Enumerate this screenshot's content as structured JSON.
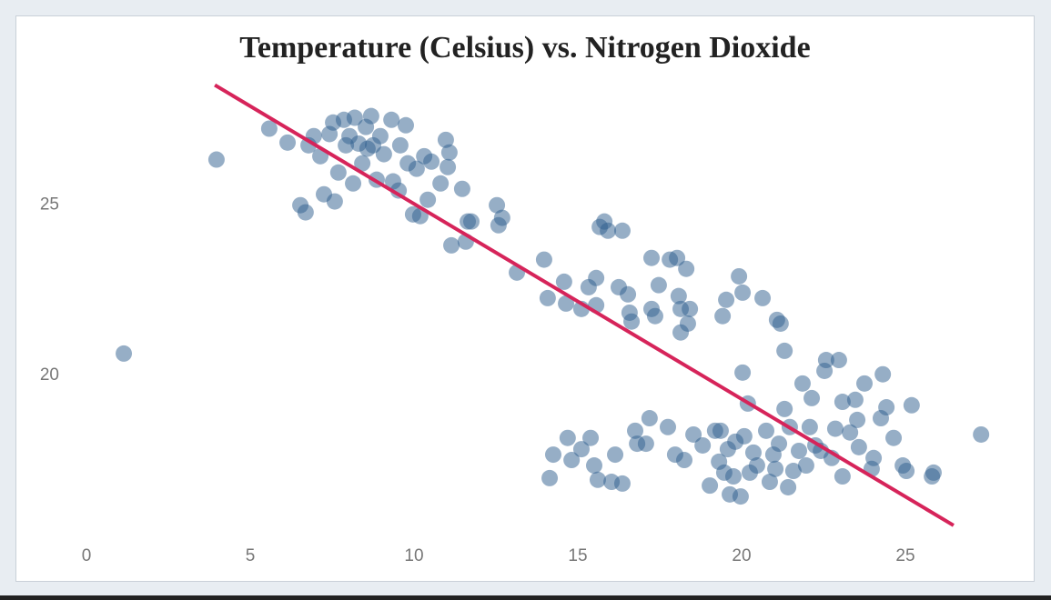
{
  "chart_data": {
    "type": "scatter",
    "title": "Temperature (Celsius) vs. Nitrogen Dioxide",
    "xlim": [
      -0.5,
      28
    ],
    "ylim": [
      15,
      29
    ],
    "xticks": [
      0,
      5,
      10,
      15,
      20,
      25
    ],
    "yticks": [
      20,
      25
    ],
    "grid": false,
    "color": "#2e5d8e",
    "x": [
      1.14,
      3.97,
      5.58,
      6.14,
      6.53,
      6.69,
      6.78,
      6.94,
      7.14,
      7.25,
      7.42,
      7.53,
      7.58,
      7.69,
      7.86,
      7.92,
      8.03,
      8.14,
      8.19,
      8.31,
      8.42,
      8.53,
      8.58,
      8.69,
      8.75,
      8.86,
      8.97,
      9.08,
      9.31,
      9.36,
      9.53,
      9.58,
      9.75,
      9.81,
      9.97,
      10.08,
      10.19,
      10.31,
      10.42,
      10.53,
      10.81,
      10.97,
      11.03,
      11.08,
      11.14,
      11.47,
      11.64,
      11.75,
      11.58,
      12.53,
      12.69,
      12.58,
      13.14,
      13.97,
      14.08,
      14.14,
      14.25,
      14.58,
      14.69,
      14.81,
      14.64,
      15.11,
      15.11,
      15.33,
      15.39,
      15.5,
      15.56,
      15.56,
      15.61,
      15.67,
      15.81,
      15.92,
      16.03,
      16.14,
      16.25,
      16.36,
      16.36,
      16.53,
      16.58,
      16.64,
      16.75,
      16.81,
      17.08,
      17.19,
      17.25,
      17.25,
      17.36,
      17.47,
      17.75,
      17.81,
      17.97,
      18.03,
      18.08,
      18.14,
      18.25,
      18.31,
      18.14,
      18.36,
      18.42,
      18.53,
      18.81,
      19.03,
      19.19,
      19.31,
      19.36,
      19.42,
      19.47,
      19.53,
      19.58,
      19.64,
      19.75,
      19.81,
      19.92,
      19.97,
      20.03,
      20.03,
      20.08,
      20.19,
      20.25,
      20.36,
      20.47,
      20.64,
      20.75,
      20.86,
      20.97,
      21.03,
      21.08,
      21.14,
      21.19,
      21.31,
      21.31,
      21.42,
      21.47,
      21.58,
      21.75,
      21.86,
      21.97,
      22.08,
      22.14,
      22.25,
      22.42,
      22.53,
      22.58,
      22.75,
      22.86,
      22.97,
      23.08,
      23.08,
      23.31,
      23.47,
      23.53,
      23.58,
      23.75,
      23.97,
      24.03,
      24.25,
      24.31,
      24.42,
      24.64,
      24.92,
      25.03,
      25.19,
      25.81,
      25.86,
      27.31
    ],
    "y": [
      20.64,
      26.34,
      27.25,
      26.84,
      25.0,
      24.79,
      26.76,
      27.03,
      26.44,
      25.32,
      27.09,
      27.43,
      25.11,
      25.96,
      27.51,
      26.76,
      27.03,
      25.64,
      27.57,
      26.81,
      26.23,
      27.3,
      26.66,
      27.62,
      26.76,
      25.75,
      27.03,
      26.5,
      27.51,
      25.7,
      25.43,
      26.76,
      27.35,
      26.23,
      24.73,
      26.07,
      24.68,
      26.44,
      25.16,
      26.28,
      25.64,
      26.92,
      26.12,
      26.55,
      23.82,
      25.48,
      24.52,
      24.52,
      23.93,
      25.0,
      24.63,
      24.41,
      23.02,
      23.4,
      22.27,
      16.98,
      17.67,
      22.75,
      18.16,
      17.51,
      22.11,
      21.95,
      17.83,
      22.59,
      18.16,
      17.35,
      22.86,
      22.06,
      16.93,
      24.36,
      24.52,
      24.25,
      16.87,
      17.67,
      22.59,
      24.25,
      16.82,
      22.38,
      21.84,
      21.58,
      18.37,
      17.99,
      17.99,
      18.74,
      23.45,
      21.95,
      21.74,
      22.65,
      18.48,
      23.4,
      17.67,
      23.45,
      22.33,
      21.95,
      17.51,
      23.13,
      21.26,
      21.52,
      21.95,
      18.26,
      17.94,
      16.76,
      18.37,
      17.46,
      18.37,
      21.74,
      17.14,
      22.22,
      17.83,
      16.5,
      17.03,
      18.05,
      22.91,
      16.44,
      22.43,
      20.08,
      18.21,
      19.17,
      17.14,
      17.73,
      17.35,
      22.27,
      18.37,
      16.87,
      17.67,
      17.25,
      21.63,
      17.99,
      21.52,
      20.72,
      19.01,
      16.71,
      18.48,
      17.19,
      17.78,
      19.76,
      17.35,
      18.48,
      19.33,
      17.94,
      17.78,
      20.13,
      20.45,
      17.57,
      18.43,
      20.45,
      19.22,
      17.03,
      18.32,
      19.28,
      18.69,
      17.89,
      19.76,
      17.25,
      17.57,
      18.74,
      20.03,
      19.06,
      18.16,
      17.35,
      17.19,
      19.12,
      17.03,
      17.14,
      18.26
    ],
    "trendline": {
      "x": [
        3.92,
        26.47
      ],
      "y": [
        28.53,
        15.59
      ],
      "color": "#d6245a"
    }
  }
}
